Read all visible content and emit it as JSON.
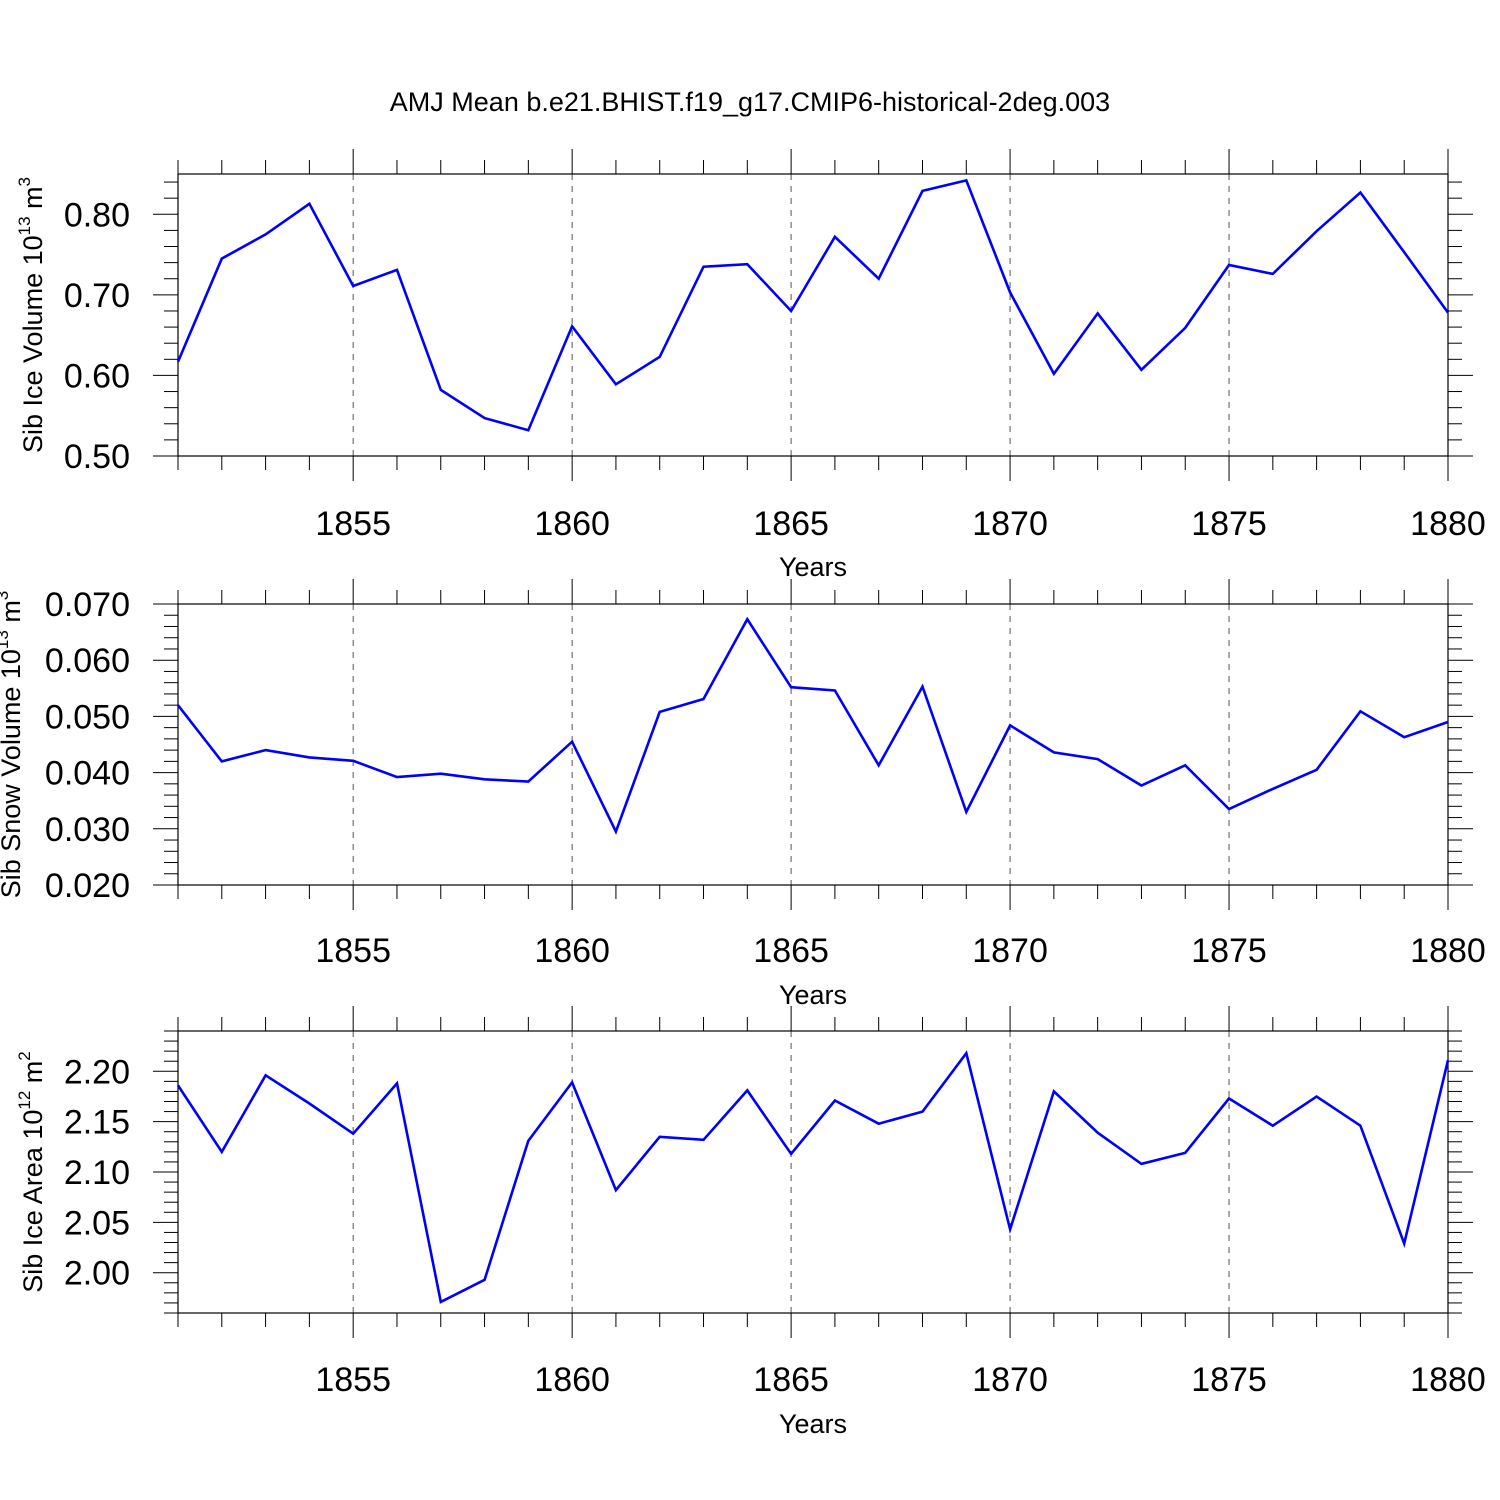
{
  "title": "AMJ Mean b.e21.BHIST.f19_g17.CMIP6-historical-2deg.003",
  "colors": {
    "line": "#0000ff",
    "axis": "#000000",
    "grid": "#555555"
  },
  "chart_data": [
    {
      "type": "line",
      "xlabel": "Years",
      "ylabel_main": "Sib Ice Volume 10",
      "ylabel_exp": "13",
      "ylabel_unit": " m",
      "ylabel_unit_exp": "3",
      "xlim": [
        1851,
        1880
      ],
      "ylim": [
        0.5,
        0.85
      ],
      "xticks": [
        1855,
        1860,
        1865,
        1870,
        1875,
        1880
      ],
      "xtick_labels": [
        "1855",
        "1860",
        "1865",
        "1870",
        "1875",
        "1880"
      ],
      "yticks": [
        0.5,
        0.6,
        0.7,
        0.8
      ],
      "ytick_labels": [
        "0.50",
        "0.60",
        "0.70",
        "0.80"
      ],
      "grid": "vertical dashed at major x ticks",
      "x": [
        1851,
        1852,
        1853,
        1854,
        1855,
        1856,
        1857,
        1858,
        1859,
        1860,
        1861,
        1862,
        1863,
        1864,
        1865,
        1866,
        1867,
        1868,
        1869,
        1870,
        1871,
        1872,
        1873,
        1874,
        1875,
        1876,
        1877,
        1878,
        1879,
        1880
      ],
      "y": [
        0.617,
        0.745,
        0.775,
        0.813,
        0.711,
        0.731,
        0.582,
        0.547,
        0.532,
        0.661,
        0.589,
        0.623,
        0.735,
        0.738,
        0.68,
        0.772,
        0.72,
        0.829,
        0.842,
        0.703,
        0.602,
        0.677,
        0.607,
        0.659,
        0.737,
        0.726,
        0.779,
        0.827,
        0.753,
        0.678
      ]
    },
    {
      "type": "line",
      "xlabel": "Years",
      "ylabel_main": "Sib Snow Volume 10",
      "ylabel_exp": "13",
      "ylabel_unit": " m",
      "ylabel_unit_exp": "3",
      "xlim": [
        1851,
        1880
      ],
      "ylim": [
        0.02,
        0.07
      ],
      "xticks": [
        1855,
        1860,
        1865,
        1870,
        1875,
        1880
      ],
      "xtick_labels": [
        "1855",
        "1860",
        "1865",
        "1870",
        "1875",
        "1880"
      ],
      "yticks": [
        0.02,
        0.03,
        0.04,
        0.05,
        0.06,
        0.07
      ],
      "ytick_labels": [
        "0.020",
        "0.030",
        "0.040",
        "0.050",
        "0.060",
        "0.070"
      ],
      "grid": "vertical dashed at major x ticks",
      "x": [
        1851,
        1852,
        1853,
        1854,
        1855,
        1856,
        1857,
        1858,
        1859,
        1860,
        1861,
        1862,
        1863,
        1864,
        1865,
        1866,
        1867,
        1868,
        1869,
        1870,
        1871,
        1872,
        1873,
        1874,
        1875,
        1876,
        1877,
        1878,
        1879,
        1880
      ],
      "y": [
        0.052,
        0.042,
        0.044,
        0.0427,
        0.0421,
        0.0392,
        0.0398,
        0.0388,
        0.0384,
        0.0455,
        0.0295,
        0.0508,
        0.0531,
        0.0673,
        0.0552,
        0.0546,
        0.0413,
        0.0553,
        0.033,
        0.0484,
        0.0436,
        0.0424,
        0.0377,
        0.0413,
        0.0335,
        0.0371,
        0.0405,
        0.0509,
        0.0463,
        0.049
      ]
    },
    {
      "type": "line",
      "xlabel": "Years",
      "ylabel_main": "Sib Ice Area 10",
      "ylabel_exp": "12",
      "ylabel_unit": " m",
      "ylabel_unit_exp": "2",
      "xlim": [
        1851,
        1880
      ],
      "ylim": [
        1.96,
        2.24
      ],
      "xticks": [
        1855,
        1860,
        1865,
        1870,
        1875,
        1880
      ],
      "xtick_labels": [
        "1855",
        "1860",
        "1865",
        "1870",
        "1875",
        "1880"
      ],
      "yticks": [
        2.0,
        2.05,
        2.1,
        2.15,
        2.2
      ],
      "ytick_labels": [
        "2.00",
        "2.05",
        "2.10",
        "2.15",
        "2.20"
      ],
      "grid": "vertical dashed at major x ticks",
      "x": [
        1851,
        1852,
        1853,
        1854,
        1855,
        1856,
        1857,
        1858,
        1859,
        1860,
        1861,
        1862,
        1863,
        1864,
        1865,
        1866,
        1867,
        1868,
        1869,
        1870,
        1871,
        1872,
        1873,
        1874,
        1875,
        1876,
        1877,
        1878,
        1879,
        1880
      ],
      "y": [
        2.186,
        2.12,
        2.196,
        2.168,
        2.138,
        2.188,
        1.971,
        1.993,
        2.131,
        2.189,
        2.082,
        2.135,
        2.132,
        2.181,
        2.118,
        2.171,
        2.148,
        2.16,
        2.218,
        2.043,
        2.18,
        2.139,
        2.108,
        2.119,
        2.173,
        2.146,
        2.175,
        2.146,
        2.029,
        2.211
      ]
    }
  ]
}
